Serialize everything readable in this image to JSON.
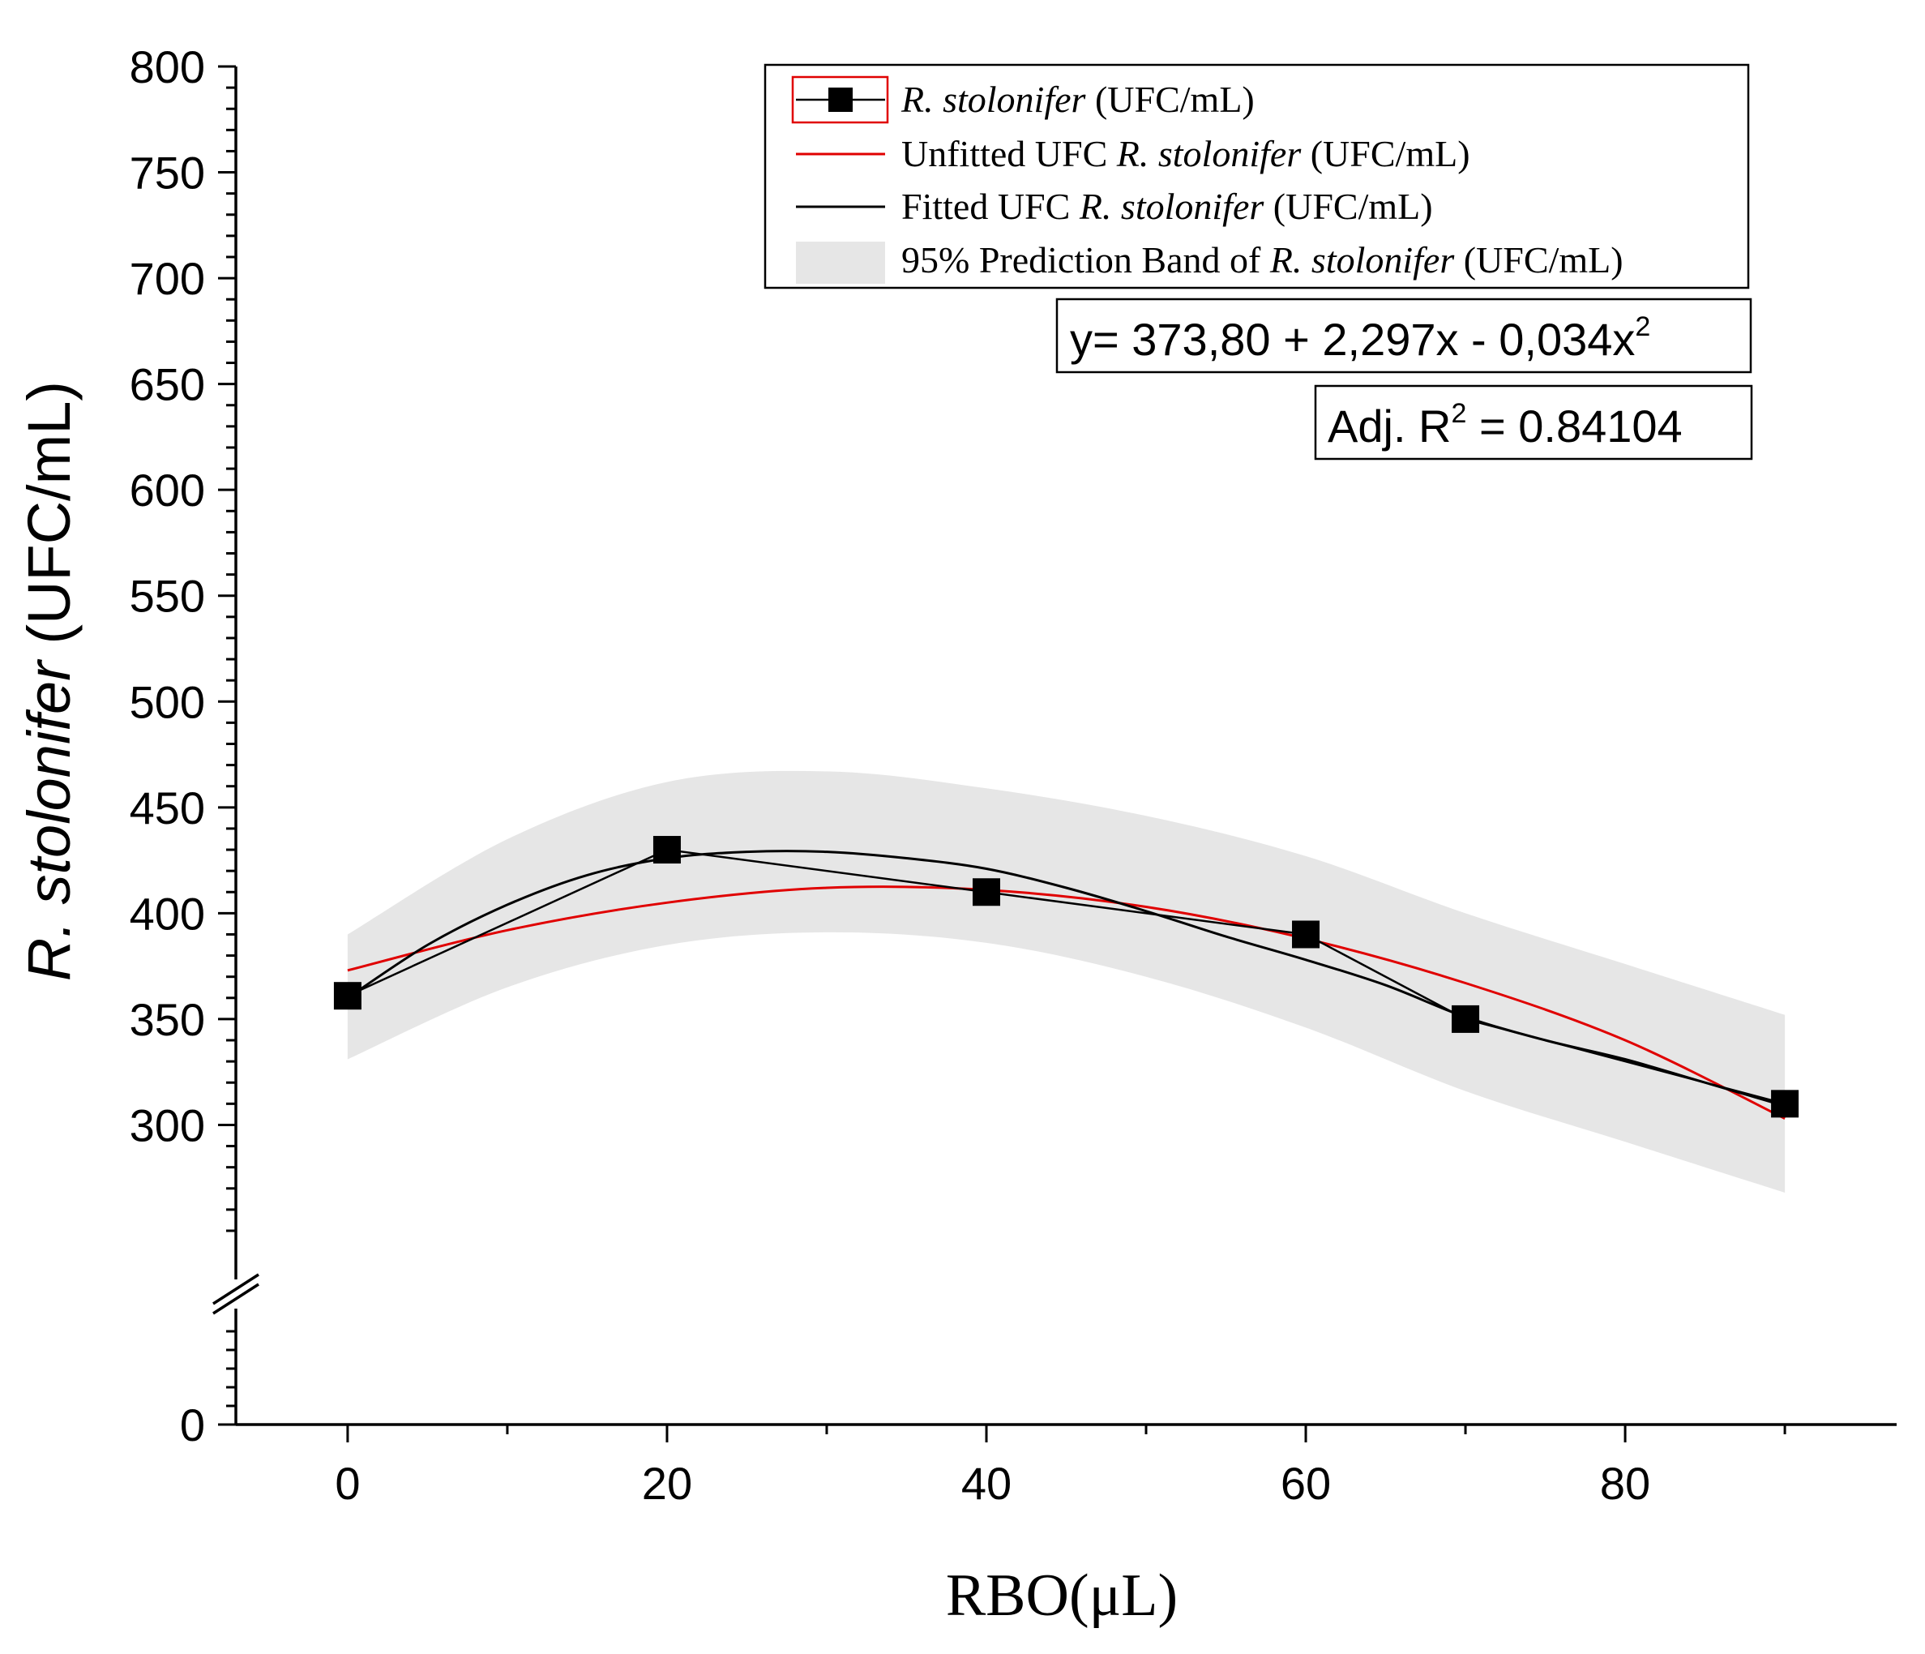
{
  "chart_data": {
    "type": "scatter",
    "x_axis": {
      "label_text": "RBO(μL)",
      "range": [
        -7,
        97
      ],
      "ticks": [
        0,
        20,
        40,
        60,
        80
      ],
      "tick_labels": [
        "0",
        "20",
        "40",
        "60",
        "80"
      ],
      "minor_step": 10
    },
    "y_axis": {
      "label_italic": "R. stolonifer",
      "label_rest": " (UFC/mL)",
      "lower_segment": {
        "range": [
          0,
          50
        ],
        "ticks": [
          0
        ],
        "tick_labels": [
          "0"
        ]
      },
      "upper_segment": {
        "range": [
          250,
          800
        ],
        "ticks": [
          300,
          350,
          400,
          450,
          500,
          550,
          600,
          650,
          700,
          750,
          800
        ],
        "tick_labels": [
          "300",
          "350",
          "400",
          "450",
          "500",
          "550",
          "600",
          "650",
          "700",
          "750",
          "800"
        ]
      },
      "break": "between 50 and 250",
      "minor_step": 10
    },
    "series": [
      {
        "name": "R. stolonifer (UFC/mL)",
        "kind": "data",
        "marker": "square",
        "color": "#000000",
        "x": [
          0,
          20,
          40,
          60,
          70,
          90
        ],
        "y": [
          361,
          430,
          410,
          390,
          350,
          310
        ]
      },
      {
        "name": "Unfitted UFC R. stolonifer (UFC/mL)",
        "kind": "curve",
        "color": "#e00000",
        "x": [
          0,
          10,
          20,
          30,
          40,
          50,
          60,
          70,
          80,
          90
        ],
        "y": [
          373,
          392,
          405,
          412,
          411,
          403,
          388,
          367,
          340,
          303
        ]
      },
      {
        "name": "Fitted UFC R. stolonifer (UFC/mL)",
        "kind": "curve",
        "color": "#000000",
        "x": [
          0,
          5,
          10,
          15,
          20,
          25,
          30,
          35,
          40,
          45,
          50,
          55,
          60,
          65,
          70,
          75,
          80,
          85,
          90
        ],
        "y": [
          360,
          385,
          404,
          418,
          426,
          429,
          429,
          426,
          421,
          412,
          401,
          389,
          378,
          366,
          351,
          340,
          331,
          320,
          309
        ]
      },
      {
        "name": "95% Prediction Band of R. stolonifer (UFC/mL)",
        "kind": "band",
        "color": "#e6e6e6",
        "x": [
          0,
          10,
          20,
          30,
          40,
          50,
          60,
          70,
          80,
          90
        ],
        "upper": [
          390,
          435,
          462,
          467,
          459,
          446,
          427,
          400,
          376,
          352
        ],
        "lower": [
          331,
          365,
          385,
          391,
          386,
          370,
          346,
          316,
          292,
          268
        ]
      }
    ],
    "legend": {
      "position": "top-right",
      "entries": [
        {
          "italic": "R. stolonifer",
          "rest": " (UFC/mL)"
        },
        {
          "pre": "Unfitted UFC ",
          "italic": "R. stolonifer",
          "rest": " (UFC/mL)"
        },
        {
          "pre": "Fitted UFC ",
          "italic": "R. stolonifer",
          "rest": " (UFC/mL)"
        },
        {
          "pre": "95% Prediction Band of ",
          "italic": "R. stolonifer",
          "rest": " (UFC/mL)"
        }
      ]
    },
    "equation": {
      "main": "y= 373,80 + 2,297x - 0,034x",
      "sup": "2"
    },
    "r_squared": {
      "pre": "Adj. R",
      "sup": "2",
      "post": " = 0.84104"
    }
  }
}
